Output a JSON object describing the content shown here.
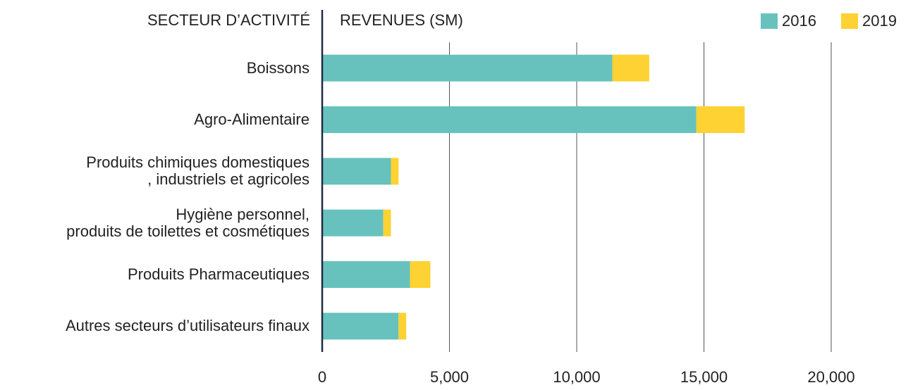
{
  "chart_data": {
    "type": "bar",
    "orientation": "horizontal",
    "stacked": true,
    "y_label": "SECTEUR D’ACTIVITÉ",
    "x_label": "REVENUES (SM)",
    "categories": [
      "Boissons",
      "Agro-Alimentaire",
      "Produits chimiques domestiques\n, industriels et agricoles",
      "Hygiène personnel,\nproduits de toilettes et cosmétiques",
      "Produits Pharmaceutiques",
      "Autres secteurs d’utilisateurs finaux"
    ],
    "series": [
      {
        "name": "2016",
        "color": "#67c2bd",
        "values": [
          11400,
          14700,
          2700,
          2400,
          3450,
          3000
        ]
      },
      {
        "name": "2019",
        "color": "#fdd232",
        "values": [
          1450,
          1900,
          300,
          300,
          800,
          300
        ]
      }
    ],
    "xlim": [
      0,
      23000
    ],
    "xticks": [
      0,
      {
        "value": 5000,
        "label": "5,000"
      },
      {
        "value": 10000,
        "label": "10,000"
      },
      {
        "value": 15000,
        "label": "15,000"
      },
      {
        "value": 20000,
        "label": "20,000"
      }
    ],
    "grid": true,
    "legend": "top-right"
  }
}
